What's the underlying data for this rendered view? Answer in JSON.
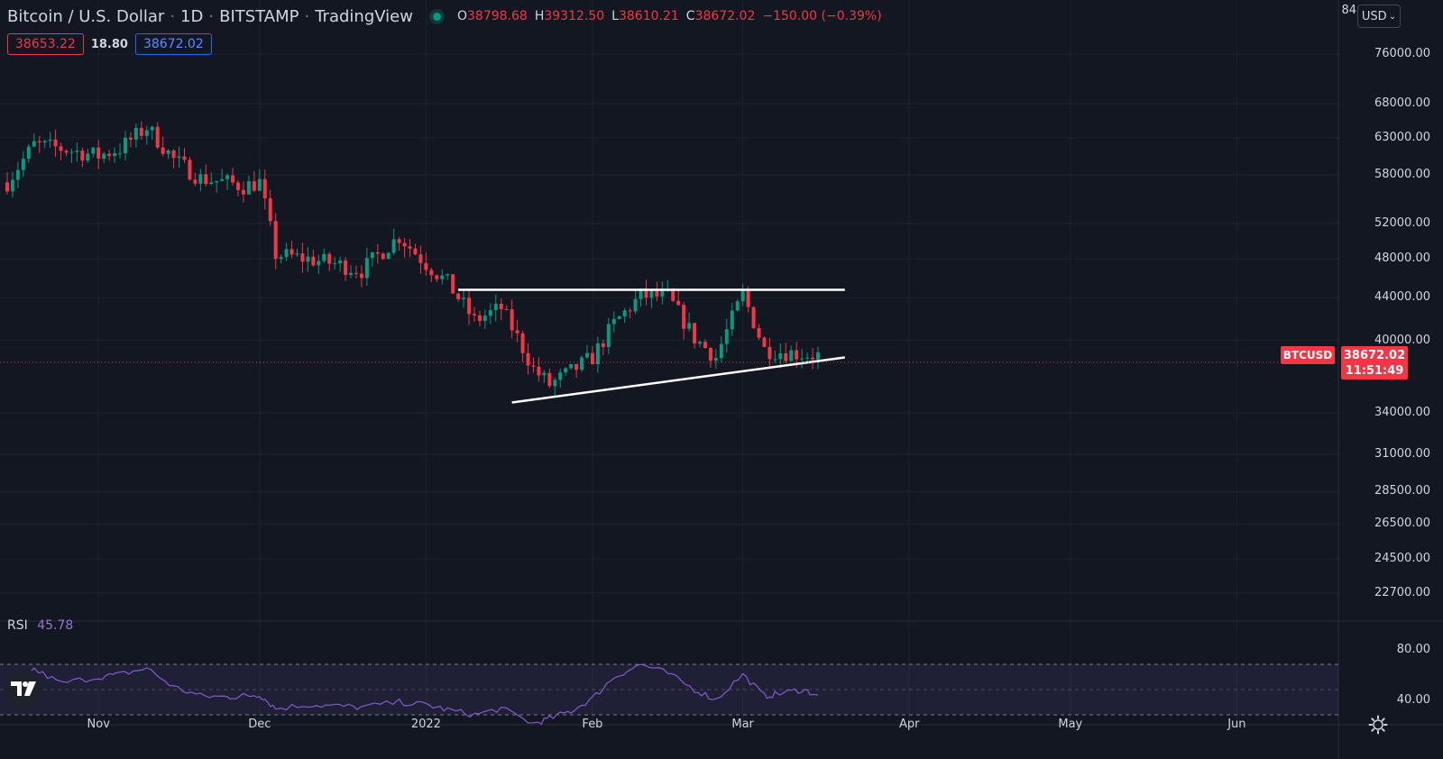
{
  "header": {
    "symbol_name": "Bitcoin / U.S. Dollar",
    "interval": "1D",
    "exchange": "BITSTAMP",
    "source": "TradingView",
    "ohlc": {
      "o_label": "O",
      "o_value": "38798.68",
      "h_label": "H",
      "h_value": "39312.50",
      "l_label": "L",
      "l_value": "38610.21",
      "c_label": "C",
      "c_value": "38672.02",
      "change": "−150.00 (−0.39%)"
    }
  },
  "order_panel": {
    "sell_price": "38653.22",
    "spread": "18.80",
    "buy_price": "38672.02"
  },
  "price_scale": {
    "currency": "USD",
    "top_label_partial": "84",
    "ticks": [
      "76000.00",
      "68000.00",
      "63000.00",
      "58000.00",
      "52000.00",
      "48000.00",
      "44000.00",
      "40000.00",
      "34000.00",
      "31000.00",
      "28500.00",
      "26500.00",
      "24500.00",
      "22700.00"
    ],
    "last_price_symbol": "BTCUSD",
    "last_price": "38672.02",
    "countdown": "11:51:49"
  },
  "time_axis": [
    "Nov",
    "Dec",
    "2022",
    "Feb",
    "Mar",
    "Apr",
    "May",
    "Jun"
  ],
  "rsi": {
    "name": "RSI",
    "value": "45.78",
    "ticks": [
      "80.00",
      "40.00"
    ],
    "band_upper": 70,
    "band_middle": 50,
    "band_lower": 30
  },
  "colors": {
    "background": "#131722",
    "up": "#089981",
    "down": "#f23645",
    "rsi_line": "#7e57c2",
    "trendline": "#ffffff"
  },
  "icons": [
    "tradingview-logo-icon",
    "settings-gear-icon",
    "chevron-down-icon"
  ],
  "chart_data": {
    "type": "candlestick",
    "symbol": "BTCUSD",
    "interval": "1D",
    "price_scale": "log",
    "ylim": [
      22000,
      84000
    ],
    "x": [
      "2021-10-15",
      "2021-10-20",
      "2021-10-25",
      "2021-11-01",
      "2021-11-05",
      "2021-11-10",
      "2021-11-15",
      "2021-11-20",
      "2021-11-25",
      "2021-11-28",
      "2021-12-01",
      "2021-12-04",
      "2021-12-10",
      "2021-12-15",
      "2021-12-20",
      "2021-12-27",
      "2022-01-01",
      "2022-01-05",
      "2022-01-10",
      "2022-01-15",
      "2022-01-21",
      "2022-01-24",
      "2022-01-28",
      "2022-02-01",
      "2022-02-05",
      "2022-02-10",
      "2022-02-15",
      "2022-02-20",
      "2022-02-24",
      "2022-03-01",
      "2022-03-05",
      "2022-03-08",
      "2022-03-12",
      "2022-03-15"
    ],
    "close": [
      57000,
      62000,
      61500,
      60500,
      61500,
      64500,
      60000,
      57500,
      57000,
      56500,
      57000,
      48500,
      48000,
      47500,
      46800,
      50500,
      47500,
      45500,
      41800,
      43000,
      37500,
      36200,
      37300,
      38500,
      41500,
      44200,
      44100,
      40200,
      38500,
      44300,
      39200,
      39000,
      38800,
      38672
    ],
    "trendlines": [
      {
        "name": "resistance",
        "from": [
          "2022-01-07",
          44800
        ],
        "to": [
          "2022-03-20",
          44800
        ]
      },
      {
        "name": "support",
        "from": [
          "2022-01-17",
          34800
        ],
        "to": [
          "2022-03-20",
          38500
        ]
      }
    ],
    "rsi_values": [
      58,
      66,
      55,
      60,
      62,
      67,
      52,
      45,
      44,
      45,
      46,
      35,
      38,
      37,
      36,
      40,
      38,
      34,
      30,
      35,
      23,
      27,
      33,
      43,
      60,
      70,
      63,
      50,
      42,
      62,
      45,
      47,
      50,
      45.78
    ]
  }
}
